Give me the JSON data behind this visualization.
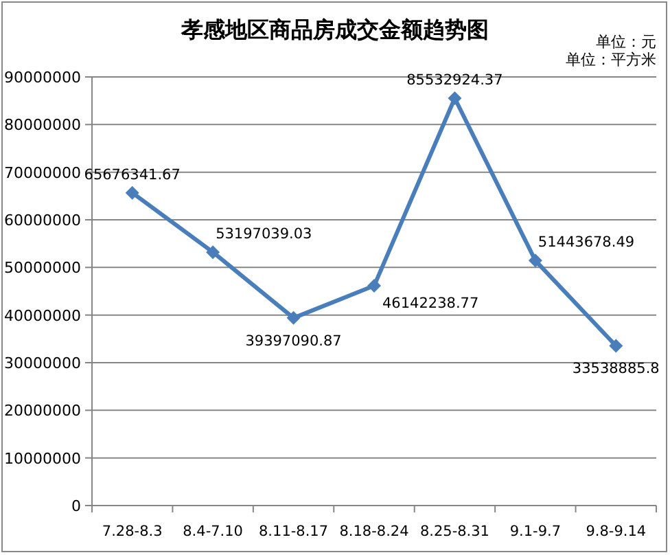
{
  "chart_data": {
    "type": "line",
    "title": "孝感地区商品房成交金额趋势图",
    "categories": [
      "7.28-8.3",
      "8.4-7.10",
      "8.11-8.17",
      "8.18-8.24",
      "8.25-8.31",
      "9.1-9.7",
      "9.8-9.14"
    ],
    "series": [
      {
        "color": "#4a7ebb",
        "values": [
          65676341.67,
          53197039.03,
          39397090.87,
          46142238.77,
          85532924.37,
          51443678.49,
          33538885.8
        ]
      }
    ],
    "ylim": [
      0,
      90000000
    ],
    "yticks": [
      0,
      10000000,
      20000000,
      30000000,
      40000000,
      50000000,
      60000000,
      70000000,
      80000000,
      90000000
    ],
    "grid": "y",
    "marker": "diamond",
    "data_labels": true,
    "annotations": [
      "单位：元",
      "单位：平方米"
    ]
  }
}
